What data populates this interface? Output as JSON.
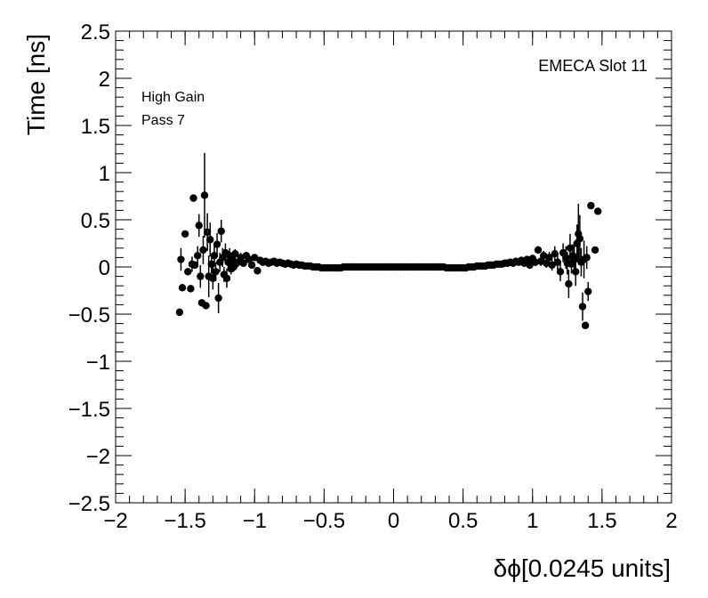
{
  "chart_data": {
    "type": "scatter",
    "title": "",
    "xlabel": "δϕ[0.0245 units]",
    "ylabel": "Time [ns]",
    "xlim": [
      -2,
      2
    ],
    "ylim": [
      -2.5,
      2.5
    ],
    "grid": false,
    "x_ticks": [
      "−2",
      "−1.5",
      "−1",
      "−0.5",
      "0",
      "0.5",
      "1",
      "1.5",
      "2"
    ],
    "y_ticks": [
      "−2.5",
      "−2",
      "−1.5",
      "−1",
      "−0.5",
      "0",
      "0.5",
      "1",
      "1.5",
      "2",
      "2.5"
    ],
    "x_tick_values": [
      -2,
      -1.5,
      -1,
      -0.5,
      0,
      0.5,
      1,
      1.5,
      2
    ],
    "y_tick_values": [
      -2.5,
      -2,
      -1.5,
      -1,
      -0.5,
      0,
      0.5,
      1,
      1.5,
      2,
      2.5
    ],
    "annotations": {
      "top_right": "EMECA Slot 11",
      "gain": "High Gain",
      "pass": "Pass 7"
    },
    "series": [
      {
        "marker_color": "#000000",
        "points": [
          {
            "x": -1.54,
            "y": -0.48,
            "err": 0.0
          },
          {
            "x": -1.53,
            "y": 0.08,
            "err": 0.12
          },
          {
            "x": -1.52,
            "y": -0.22,
            "err": 0.0
          },
          {
            "x": -1.5,
            "y": 0.35,
            "err": 0.0
          },
          {
            "x": -1.48,
            "y": -0.05,
            "err": 0.0
          },
          {
            "x": -1.46,
            "y": -0.23,
            "err": 0.0
          },
          {
            "x": -1.45,
            "y": 0.03,
            "err": 0.08
          },
          {
            "x": -1.44,
            "y": 0.73,
            "err": 0.0
          },
          {
            "x": -1.43,
            "y": 0.02,
            "err": 0.0
          },
          {
            "x": -1.41,
            "y": 0.12,
            "err": 0.1
          },
          {
            "x": -1.4,
            "y": 0.44,
            "err": 0.12
          },
          {
            "x": -1.39,
            "y": -0.1,
            "err": 0.12
          },
          {
            "x": -1.38,
            "y": -0.38,
            "err": 0.0
          },
          {
            "x": -1.37,
            "y": 0.18,
            "err": 0.15
          },
          {
            "x": -1.36,
            "y": 0.76,
            "err": 0.45
          },
          {
            "x": -1.35,
            "y": -0.41,
            "err": 0.0
          },
          {
            "x": -1.34,
            "y": 0.37,
            "err": 0.2
          },
          {
            "x": -1.33,
            "y": -0.1,
            "err": 0.22
          },
          {
            "x": -1.32,
            "y": 0.29,
            "err": 0.18
          },
          {
            "x": -1.31,
            "y": 0.03,
            "err": 0.1
          },
          {
            "x": -1.3,
            "y": -0.12,
            "err": 0.12
          },
          {
            "x": -1.29,
            "y": 0.12,
            "err": 0.12
          },
          {
            "x": -1.28,
            "y": -0.05,
            "err": 0.1
          },
          {
            "x": -1.27,
            "y": 0.24,
            "err": 0.12
          },
          {
            "x": -1.26,
            "y": -0.33,
            "err": 0.16
          },
          {
            "x": -1.25,
            "y": 0.05,
            "err": 0.1
          },
          {
            "x": -1.24,
            "y": 0.38,
            "err": 0.12
          },
          {
            "x": -1.23,
            "y": 0.1,
            "err": 0.1
          },
          {
            "x": -1.22,
            "y": -0.08,
            "err": 0.08
          },
          {
            "x": -1.21,
            "y": 0.15,
            "err": 0.1
          },
          {
            "x": -1.2,
            "y": -0.12,
            "err": 0.1
          },
          {
            "x": -1.19,
            "y": 0.05,
            "err": 0.08
          },
          {
            "x": -1.18,
            "y": 0.12,
            "err": 0.08
          },
          {
            "x": -1.17,
            "y": -0.02,
            "err": 0.06
          },
          {
            "x": -1.16,
            "y": 0.08,
            "err": 0.06
          },
          {
            "x": -1.15,
            "y": 0.0,
            "err": 0.05
          },
          {
            "x": -1.14,
            "y": 0.14,
            "err": 0.05
          },
          {
            "x": -1.12,
            "y": 0.05,
            "err": 0.05
          },
          {
            "x": -1.1,
            "y": 0.1,
            "err": 0.05
          },
          {
            "x": -1.08,
            "y": 0.04,
            "err": 0.04
          },
          {
            "x": -1.06,
            "y": 0.12,
            "err": 0.04
          },
          {
            "x": -1.04,
            "y": 0.08,
            "err": 0.04
          },
          {
            "x": -1.02,
            "y": 0.02,
            "err": 0.03
          },
          {
            "x": -1.0,
            "y": 0.1,
            "err": 0.03
          },
          {
            "x": -0.98,
            "y": -0.04,
            "err": 0.03
          },
          {
            "x": -0.96,
            "y": 0.07,
            "err": 0.03
          },
          {
            "x": -0.94,
            "y": 0.05,
            "err": 0.02
          },
          {
            "x": -0.92,
            "y": 0.06,
            "err": 0.02
          },
          {
            "x": -0.9,
            "y": 0.04,
            "err": 0.02
          },
          {
            "x": -0.88,
            "y": 0.05,
            "err": 0.02
          },
          {
            "x": -0.86,
            "y": 0.06,
            "err": 0.02
          },
          {
            "x": -0.84,
            "y": 0.04,
            "err": 0.02
          },
          {
            "x": -0.82,
            "y": 0.05,
            "err": 0.0
          },
          {
            "x": -0.8,
            "y": 0.04,
            "err": 0.0
          },
          {
            "x": -0.78,
            "y": 0.03,
            "err": 0.0
          },
          {
            "x": -0.76,
            "y": 0.04,
            "err": 0.0
          },
          {
            "x": -0.74,
            "y": 0.03,
            "err": 0.0
          },
          {
            "x": -0.72,
            "y": 0.02,
            "err": 0.0
          },
          {
            "x": -0.7,
            "y": 0.03,
            "err": 0.0
          },
          {
            "x": -0.68,
            "y": 0.02,
            "err": 0.0
          },
          {
            "x": -0.66,
            "y": 0.02,
            "err": 0.0
          },
          {
            "x": -0.64,
            "y": 0.01,
            "err": 0.0
          },
          {
            "x": -0.62,
            "y": 0.01,
            "err": 0.0
          },
          {
            "x": -0.6,
            "y": 0.01,
            "err": 0.0
          },
          {
            "x": -0.58,
            "y": 0.0,
            "err": 0.0
          },
          {
            "x": -0.56,
            "y": 0.0,
            "err": 0.0
          },
          {
            "x": -0.54,
            "y": 0.0,
            "err": 0.0
          },
          {
            "x": -0.52,
            "y": -0.01,
            "err": 0.0
          },
          {
            "x": -0.5,
            "y": -0.01,
            "err": 0.0
          },
          {
            "x": -0.48,
            "y": -0.01,
            "err": 0.0
          },
          {
            "x": -0.46,
            "y": -0.01,
            "err": 0.0
          },
          {
            "x": -0.44,
            "y": -0.01,
            "err": 0.0
          },
          {
            "x": -0.42,
            "y": -0.01,
            "err": 0.0
          },
          {
            "x": -0.4,
            "y": -0.01,
            "err": 0.0
          },
          {
            "x": -0.38,
            "y": -0.01,
            "err": 0.0
          },
          {
            "x": -0.36,
            "y": 0.0,
            "err": 0.0
          },
          {
            "x": -0.34,
            "y": 0.0,
            "err": 0.0
          },
          {
            "x": -0.32,
            "y": 0.0,
            "err": 0.0
          },
          {
            "x": -0.3,
            "y": 0.0,
            "err": 0.0
          },
          {
            "x": -0.28,
            "y": 0.0,
            "err": 0.0
          },
          {
            "x": -0.26,
            "y": 0.0,
            "err": 0.0
          },
          {
            "x": -0.24,
            "y": 0.0,
            "err": 0.0
          },
          {
            "x": -0.22,
            "y": 0.0,
            "err": 0.0
          },
          {
            "x": -0.2,
            "y": 0.0,
            "err": 0.0
          },
          {
            "x": -0.18,
            "y": 0.0,
            "err": 0.0
          },
          {
            "x": -0.16,
            "y": 0.0,
            "err": 0.0
          },
          {
            "x": -0.14,
            "y": 0.0,
            "err": 0.0
          },
          {
            "x": -0.12,
            "y": 0.0,
            "err": 0.0
          },
          {
            "x": -0.1,
            "y": 0.0,
            "err": 0.0
          },
          {
            "x": -0.08,
            "y": 0.0,
            "err": 0.0
          },
          {
            "x": -0.06,
            "y": 0.0,
            "err": 0.0
          },
          {
            "x": -0.04,
            "y": 0.0,
            "err": 0.0
          },
          {
            "x": -0.02,
            "y": 0.0,
            "err": 0.0
          },
          {
            "x": 0.0,
            "y": 0.0,
            "err": 0.0
          },
          {
            "x": 0.02,
            "y": 0.0,
            "err": 0.0
          },
          {
            "x": 0.04,
            "y": 0.0,
            "err": 0.0
          },
          {
            "x": 0.06,
            "y": 0.0,
            "err": 0.0
          },
          {
            "x": 0.08,
            "y": 0.0,
            "err": 0.0
          },
          {
            "x": 0.1,
            "y": 0.0,
            "err": 0.0
          },
          {
            "x": 0.12,
            "y": 0.0,
            "err": 0.0
          },
          {
            "x": 0.14,
            "y": 0.0,
            "err": 0.0
          },
          {
            "x": 0.16,
            "y": 0.0,
            "err": 0.0
          },
          {
            "x": 0.18,
            "y": 0.0,
            "err": 0.0
          },
          {
            "x": 0.2,
            "y": 0.0,
            "err": 0.0
          },
          {
            "x": 0.22,
            "y": 0.0,
            "err": 0.0
          },
          {
            "x": 0.24,
            "y": 0.0,
            "err": 0.0
          },
          {
            "x": 0.26,
            "y": 0.0,
            "err": 0.0
          },
          {
            "x": 0.28,
            "y": 0.0,
            "err": 0.0
          },
          {
            "x": 0.3,
            "y": 0.0,
            "err": 0.0
          },
          {
            "x": 0.32,
            "y": 0.0,
            "err": 0.0
          },
          {
            "x": 0.34,
            "y": 0.0,
            "err": 0.0
          },
          {
            "x": 0.36,
            "y": 0.0,
            "err": 0.0
          },
          {
            "x": 0.38,
            "y": -0.01,
            "err": 0.0
          },
          {
            "x": 0.4,
            "y": -0.01,
            "err": 0.0
          },
          {
            "x": 0.42,
            "y": -0.01,
            "err": 0.0
          },
          {
            "x": 0.44,
            "y": -0.01,
            "err": 0.0
          },
          {
            "x": 0.46,
            "y": -0.01,
            "err": 0.0
          },
          {
            "x": 0.48,
            "y": -0.01,
            "err": 0.0
          },
          {
            "x": 0.5,
            "y": -0.01,
            "err": 0.0
          },
          {
            "x": 0.52,
            "y": -0.01,
            "err": 0.0
          },
          {
            "x": 0.54,
            "y": 0.0,
            "err": 0.0
          },
          {
            "x": 0.56,
            "y": 0.0,
            "err": 0.0
          },
          {
            "x": 0.58,
            "y": 0.0,
            "err": 0.0
          },
          {
            "x": 0.6,
            "y": 0.01,
            "err": 0.0
          },
          {
            "x": 0.62,
            "y": 0.01,
            "err": 0.0
          },
          {
            "x": 0.64,
            "y": 0.01,
            "err": 0.0
          },
          {
            "x": 0.66,
            "y": 0.01,
            "err": 0.0
          },
          {
            "x": 0.68,
            "y": 0.02,
            "err": 0.0
          },
          {
            "x": 0.7,
            "y": 0.02,
            "err": 0.0
          },
          {
            "x": 0.72,
            "y": 0.02,
            "err": 0.0
          },
          {
            "x": 0.74,
            "y": 0.03,
            "err": 0.0
          },
          {
            "x": 0.76,
            "y": 0.03,
            "err": 0.0
          },
          {
            "x": 0.78,
            "y": 0.03,
            "err": 0.0
          },
          {
            "x": 0.8,
            "y": 0.04,
            "err": 0.0
          },
          {
            "x": 0.82,
            "y": 0.04,
            "err": 0.0
          },
          {
            "x": 0.84,
            "y": 0.05,
            "err": 0.02
          },
          {
            "x": 0.86,
            "y": 0.04,
            "err": 0.02
          },
          {
            "x": 0.88,
            "y": 0.06,
            "err": 0.02
          },
          {
            "x": 0.9,
            "y": 0.05,
            "err": 0.02
          },
          {
            "x": 0.92,
            "y": 0.07,
            "err": 0.03
          },
          {
            "x": 0.94,
            "y": 0.04,
            "err": 0.03
          },
          {
            "x": 0.96,
            "y": 0.08,
            "err": 0.03
          },
          {
            "x": 0.98,
            "y": 0.02,
            "err": 0.03
          },
          {
            "x": 1.0,
            "y": 0.09,
            "err": 0.04
          },
          {
            "x": 1.02,
            "y": 0.05,
            "err": 0.04
          },
          {
            "x": 1.04,
            "y": 0.18,
            "err": 0.04
          },
          {
            "x": 1.06,
            "y": 0.06,
            "err": 0.05
          },
          {
            "x": 1.08,
            "y": 0.12,
            "err": 0.05
          },
          {
            "x": 1.1,
            "y": 0.04,
            "err": 0.05
          },
          {
            "x": 1.12,
            "y": 0.1,
            "err": 0.06
          },
          {
            "x": 1.14,
            "y": 0.02,
            "err": 0.06
          },
          {
            "x": 1.16,
            "y": 0.14,
            "err": 0.08
          },
          {
            "x": 1.18,
            "y": 0.05,
            "err": 0.08
          },
          {
            "x": 1.2,
            "y": -0.05,
            "err": 0.1
          },
          {
            "x": 1.22,
            "y": 0.15,
            "err": 0.1
          },
          {
            "x": 1.24,
            "y": 0.1,
            "err": 0.12
          },
          {
            "x": 1.25,
            "y": 0.04,
            "err": 0.12
          },
          {
            "x": 1.26,
            "y": -0.18,
            "err": 0.15
          },
          {
            "x": 1.27,
            "y": 0.2,
            "err": 0.15
          },
          {
            "x": 1.28,
            "y": 0.03,
            "err": 0.1
          },
          {
            "x": 1.29,
            "y": 0.12,
            "err": 0.12
          },
          {
            "x": 1.3,
            "y": 0.08,
            "err": 0.15
          },
          {
            "x": 1.31,
            "y": -0.05,
            "err": 0.15
          },
          {
            "x": 1.32,
            "y": 0.25,
            "err": 0.2
          },
          {
            "x": 1.33,
            "y": 0.35,
            "err": 0.32
          },
          {
            "x": 1.34,
            "y": 0.3,
            "err": 0.25
          },
          {
            "x": 1.35,
            "y": 0.05,
            "err": 0.15
          },
          {
            "x": 1.36,
            "y": -0.42,
            "err": 0.15
          },
          {
            "x": 1.37,
            "y": 0.08,
            "err": 0.2
          },
          {
            "x": 1.38,
            "y": -0.62,
            "err": 0.0
          },
          {
            "x": 1.39,
            "y": 0.1,
            "err": 0.12
          },
          {
            "x": 1.4,
            "y": -0.26,
            "err": 0.1
          },
          {
            "x": 1.42,
            "y": 0.65,
            "err": 0.0
          },
          {
            "x": 1.45,
            "y": 0.18,
            "err": 0.0
          },
          {
            "x": 1.47,
            "y": 0.59,
            "err": 0.0
          }
        ]
      }
    ]
  }
}
